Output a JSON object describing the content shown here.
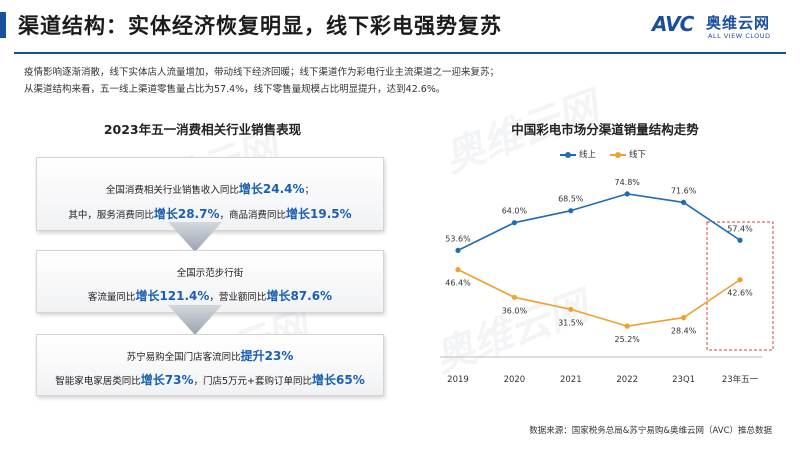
{
  "header": {
    "title": "渠道结构：实体经济恢复明显，线下彩电强势复苏",
    "logo_mark": "AVC",
    "logo_cn": "奥维云网",
    "logo_en": "ALL VIEW CLOUD"
  },
  "intro": {
    "line1": "疫情影响逐渐消散，线下实体店人流量增加，带动线下经济回暖；线下渠道作为彩电行业主流渠道之一迎来复苏；",
    "line2": "从渠道结构来看，五一线上渠道零售量占比为57.4%，线下零售量规模占比明显提升，达到42.6%。"
  },
  "left_panel": {
    "title": "2023年五一消费相关行业销售表现",
    "box1": {
      "l1_pre": "全国消费相关行业销售收入同比",
      "l1_hl": "增长24.4%",
      "l1_post": "；",
      "l2_a": "其中，服务消费同比",
      "l2_hl1": "增长28.7%",
      "l2_b": "，商品消费同比",
      "l2_hl2": "增长19.5%"
    },
    "box2": {
      "l1": "全国示范步行街",
      "l2_a": "客流量同比",
      "l2_hl1": "增长121.4%",
      "l2_b": "，营业额同比",
      "l2_hl2": "增长87.6%"
    },
    "box3": {
      "l1_pre": "苏宁易购全国门店客流同比",
      "l1_hl": "提升23%",
      "l2_a": "智能家电家居类同比",
      "l2_hl1": "增长73%",
      "l2_b": "，门店5万元+套购订单同比",
      "l2_hl2": "增长65%"
    }
  },
  "chart_data": {
    "type": "line",
    "title": "中国彩电市场分渠道销量结构走势",
    "categories": [
      "2019",
      "2020",
      "2021",
      "2022",
      "23Q1",
      "23年五一"
    ],
    "series": [
      {
        "name": "线上",
        "values": [
          53.6,
          64.0,
          68.5,
          74.8,
          71.6,
          57.4
        ],
        "labels": [
          "53.6%",
          "64.0%",
          "68.5%",
          "74.8%",
          "71.6%",
          "57.4%"
        ],
        "color": "#1f6bb5"
      },
      {
        "name": "线下",
        "values": [
          46.4,
          36.0,
          31.5,
          25.2,
          28.4,
          42.6
        ],
        "labels": [
          "46.4%",
          "36.0%",
          "31.5%",
          "25.2%",
          "28.4%",
          "42.6%"
        ],
        "color": "#f0a030"
      }
    ],
    "ylim": [
      20,
      80
    ],
    "grid": false,
    "legend": "top-center",
    "highlight_category": "23年五一",
    "highlight_color": "#d04040"
  },
  "footer": {
    "source": "数据来源：国家税务总局&苏宁易购&奥维云网（AVC）推总数据"
  }
}
